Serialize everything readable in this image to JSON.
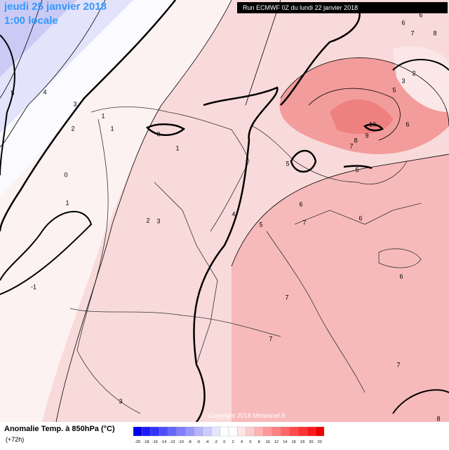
{
  "header": {
    "date": "jeudi 25 janvier 2018",
    "time": "1:00 locale",
    "run": "Run ECMWF 0Z du lundi 22 janvier 2018"
  },
  "map": {
    "contour_labels": [
      "5",
      "4",
      "3",
      "2",
      "1",
      "1",
      "0",
      "1",
      "0",
      "1",
      "-1",
      "2",
      "3",
      "4",
      "5",
      "5",
      "5",
      "6",
      "7",
      "6",
      "7",
      "7",
      "7",
      "6",
      "8",
      "9",
      "10",
      "7",
      "6",
      "5",
      "3",
      "2",
      "6",
      "6",
      "7",
      "8",
      "3",
      "8"
    ]
  },
  "copyright": "Copyright 2018 Meteociel.fr",
  "footer": {
    "title": "Anomalie Temp. à 850hPa (°C)",
    "subtitle": "(+72h)"
  },
  "colorbar": {
    "labels": [
      "-20",
      "-18",
      "-16",
      "-14",
      "-12",
      "-10",
      "-8",
      "-6",
      "-4",
      "-2",
      "0",
      "2",
      "4",
      "6",
      "8",
      "10",
      "12",
      "14",
      "16",
      "18",
      "20",
      "22"
    ],
    "colors": [
      "#0000ee",
      "#1a1aff",
      "#3333ff",
      "#4d4dff",
      "#6666ff",
      "#8080ff",
      "#9999ff",
      "#b3b3ff",
      "#ccccff",
      "#e6e6ff",
      "#ffffff",
      "#ffffff",
      "#ffe6e6",
      "#ffcccc",
      "#ffb3b3",
      "#ff9999",
      "#ff8080",
      "#ff6666",
      "#ff4d4d",
      "#ff3333",
      "#ff1a1a",
      "#ee0000"
    ]
  }
}
